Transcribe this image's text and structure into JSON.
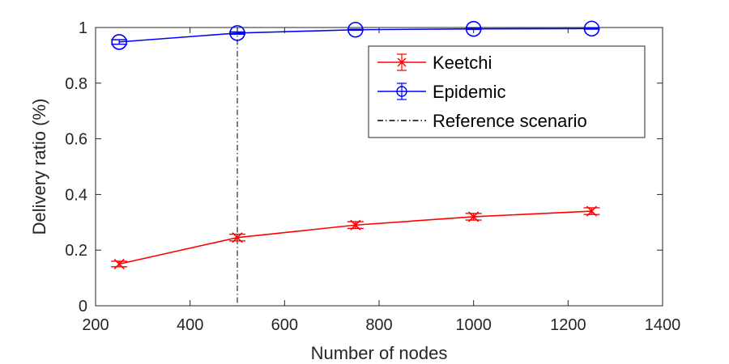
{
  "chart_data": {
    "type": "line",
    "title": "",
    "xlabel": "Number of nodes",
    "ylabel": "Delivery ratio (%)",
    "xlim": [
      200,
      1400
    ],
    "ylim": [
      0,
      1
    ],
    "xticks": [
      200,
      400,
      600,
      800,
      1000,
      1200,
      1400
    ],
    "yticks": [
      0,
      0.2,
      0.4,
      0.6,
      0.8,
      1
    ],
    "ytick_labels": [
      "0",
      "0.2",
      "0.4",
      "0.6",
      "0.8",
      "1"
    ],
    "grid": false,
    "legend_position": "top-right",
    "series": [
      {
        "name": "Keetchi",
        "color": "#ff0000",
        "marker": "x",
        "x": [
          250,
          500,
          750,
          1000,
          1250
        ],
        "y": [
          0.15,
          0.245,
          0.29,
          0.32,
          0.34
        ],
        "error": [
          0.01,
          0.012,
          0.012,
          0.012,
          0.012
        ]
      },
      {
        "name": "Epidemic",
        "color": "#0000ff",
        "marker": "o",
        "x": [
          250,
          500,
          750,
          1000,
          1250
        ],
        "y": [
          0.948,
          0.98,
          0.992,
          0.995,
          0.996
        ],
        "error": [
          0.008,
          0.004,
          0.002,
          0.002,
          0.002
        ]
      }
    ],
    "reference_line": {
      "name": "Reference scenario",
      "x": 500,
      "color": "#000000"
    }
  }
}
